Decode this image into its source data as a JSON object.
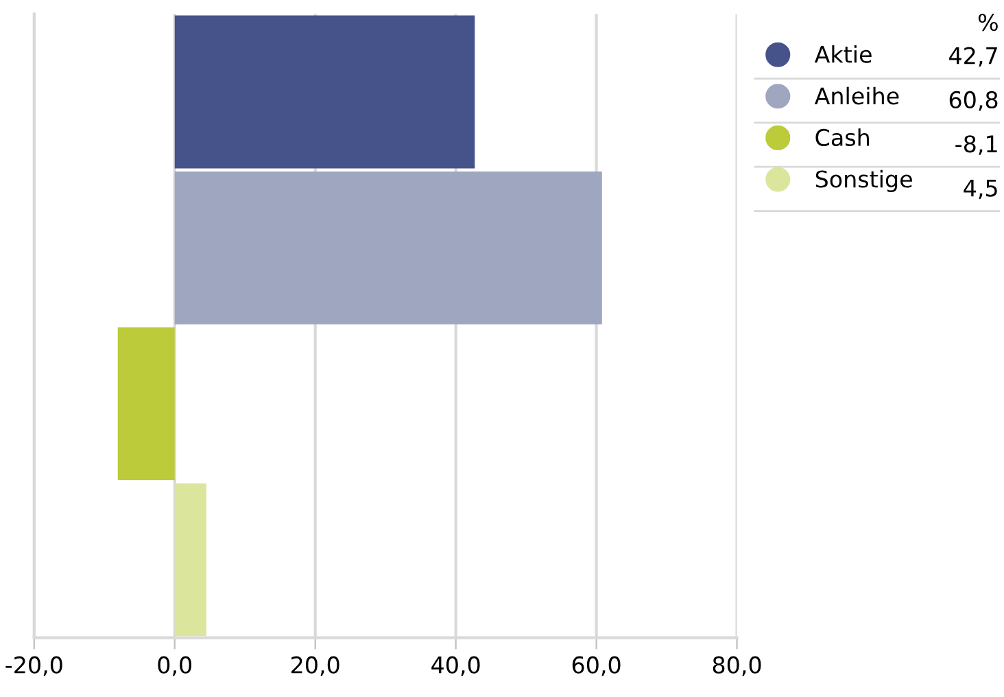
{
  "chart_data": {
    "type": "bar",
    "orientation": "horizontal",
    "categories": [
      null,
      null,
      null,
      null
    ],
    "series": [
      {
        "name": "Aktie",
        "color": "#46538a",
        "values": [
          42.7,
          null,
          null,
          null
        ]
      },
      {
        "name": "Anleihe",
        "color": "#9fa6c0",
        "values": [
          null,
          60.8,
          null,
          null
        ]
      },
      {
        "name": "Cash",
        "color": "#bccb3a",
        "values": [
          null,
          null,
          -8.1,
          null
        ]
      },
      {
        "name": "Sonstige",
        "color": "#dce59c",
        "values": [
          null,
          null,
          null,
          4.5
        ]
      }
    ],
    "annotations": [
      "%",
      "42,7",
      "60,8",
      "-8,1",
      "4,5"
    ],
    "legend": "right",
    "xlim": [
      -20,
      80
    ],
    "xticks": [
      {
        "value": -20,
        "label": "-20,0"
      },
      {
        "value": 0,
        "label": "0,0"
      },
      {
        "value": 20,
        "label": "20,0"
      },
      {
        "value": 40,
        "label": "40,0"
      },
      {
        "value": 60,
        "label": "60,0"
      },
      {
        "value": 80,
        "label": "80,0"
      }
    ],
    "grid": "x",
    "tick_labels": "x"
  }
}
